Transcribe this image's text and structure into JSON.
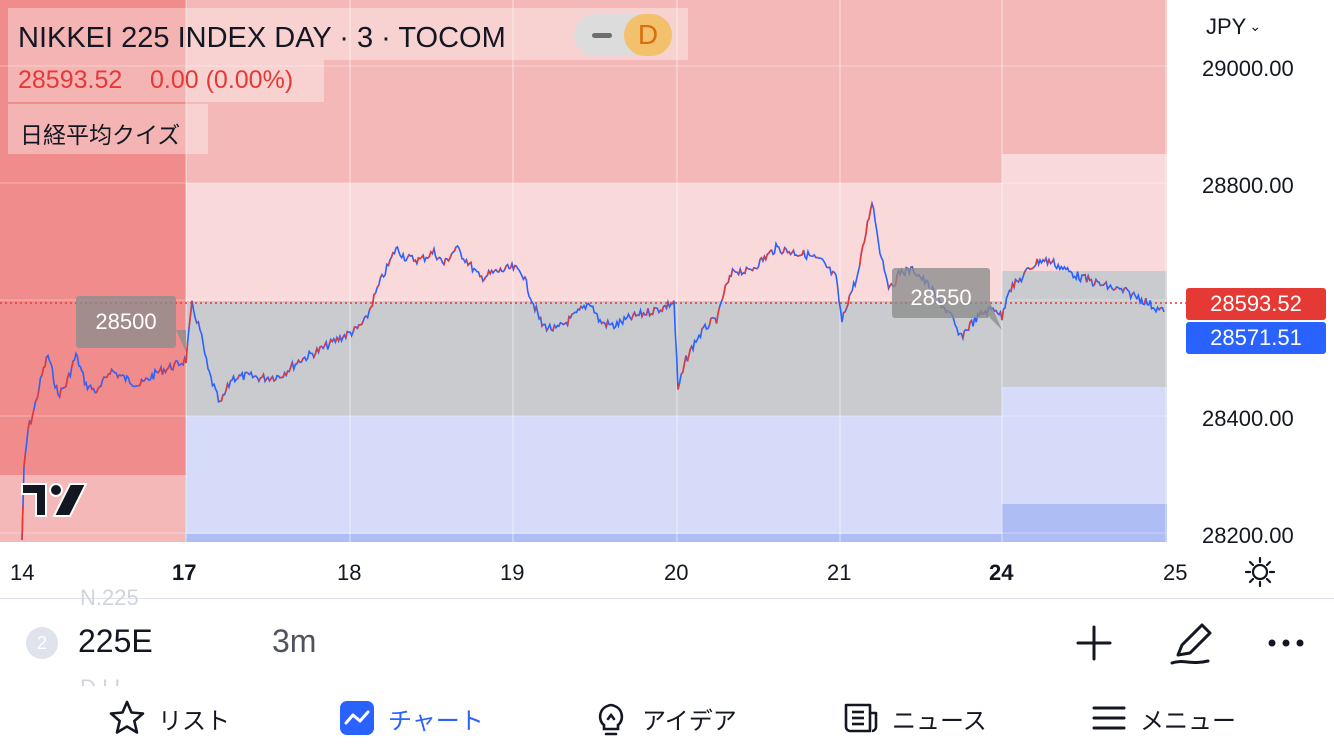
{
  "header": {
    "title": "NIKKEI 225 INDEX DAY · 3 · TOCOM",
    "badge": "D",
    "price": "28593.52",
    "change": "0.00 (0.00%)",
    "indicator": "日経平均クイズ"
  },
  "chart": {
    "currency": "JPY",
    "y_labels": [
      "29000.00",
      "28800.00",
      "28400.00",
      "28200.00"
    ],
    "x_labels": [
      {
        "text": "14",
        "bold": false
      },
      {
        "text": "17",
        "bold": true
      },
      {
        "text": "18",
        "bold": false
      },
      {
        "text": "19",
        "bold": false
      },
      {
        "text": "20",
        "bold": false
      },
      {
        "text": "21",
        "bold": false
      },
      {
        "text": "24",
        "bold": true
      },
      {
        "text": "25",
        "bold": false
      }
    ],
    "box_labels": [
      "28500",
      "28550"
    ],
    "last_price_tag": "28593.52",
    "second_price_tag": "28571.51",
    "colors": {
      "up": "#e53935",
      "down": "#2962ff",
      "last_price": "#e53935",
      "second_price": "#2962ff"
    }
  },
  "symbol_bar": {
    "ghost_top": "N.225",
    "ghost_bottom": "D.I.I.",
    "index": "2",
    "symbol": "225E",
    "interval": "3m",
    "icons": [
      "plus-icon",
      "pen-icon",
      "more-icon"
    ]
  },
  "nav": [
    {
      "label": "リスト",
      "icon": "star-icon",
      "active": false
    },
    {
      "label": "チャート",
      "icon": "chart-icon",
      "active": true
    },
    {
      "label": "アイデア",
      "icon": "lightbulb-icon",
      "active": false
    },
    {
      "label": "ニュース",
      "icon": "news-icon",
      "active": false
    },
    {
      "label": "メニュー",
      "icon": "menu-icon",
      "active": false
    }
  ]
}
